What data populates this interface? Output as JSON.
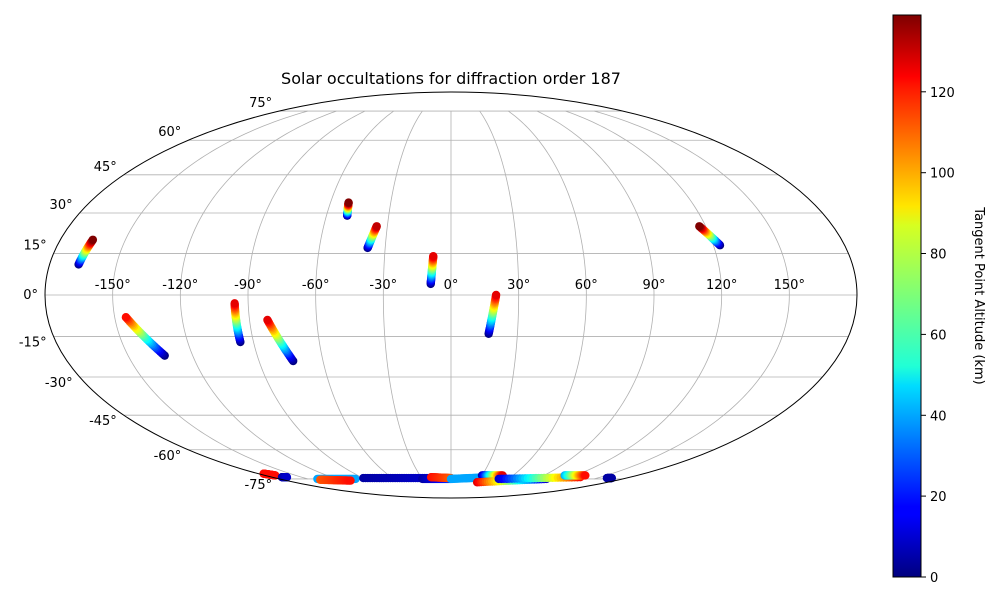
{
  "chart_data": {
    "type": "scatter",
    "projection": "mollweide",
    "title": "Solar occultations for diffraction order 187",
    "xlabel": "",
    "ylabel": "",
    "xticks": [
      "-150°",
      "-120°",
      "-90°",
      "-60°",
      "-30°",
      "0°",
      "30°",
      "60°",
      "90°",
      "120°",
      "150°"
    ],
    "yticks": [
      "-75°",
      "-60°",
      "-45°",
      "-30°",
      "-15°",
      "0°",
      "15°",
      "30°",
      "45°",
      "60°",
      "75°"
    ],
    "grid": true,
    "colormap": "jet",
    "colorbar": {
      "label": "Tangent Point Altitude (km)",
      "range": [
        0,
        139
      ],
      "ticks": [
        0,
        20,
        40,
        60,
        80,
        100,
        120
      ]
    },
    "series": [
      {
        "lon_start": -167,
        "lat_start": 11,
        "alt_start": 0,
        "lon_end": -165,
        "lat_end": 20,
        "alt_end": 139
      },
      {
        "lon_start": -50,
        "lat_start": 29,
        "alt_start": 0,
        "lon_end": -51,
        "lat_end": 34,
        "alt_end": 139
      },
      {
        "lon_start": -38,
        "lat_start": 17,
        "alt_start": 0,
        "lon_end": -35,
        "lat_end": 25,
        "alt_end": 130
      },
      {
        "lon_start": -9,
        "lat_start": 4,
        "alt_start": 0,
        "lon_end": -8,
        "lat_end": 14,
        "alt_end": 125
      },
      {
        "lon_start": 123,
        "lat_start": 18,
        "alt_start": 0,
        "lon_end": 117,
        "lat_end": 25,
        "alt_end": 139
      },
      {
        "lon_start": -133,
        "lat_start": -22,
        "alt_start": 0,
        "lon_end": -145,
        "lat_end": -8,
        "alt_end": 120
      },
      {
        "lon_start": -96,
        "lat_start": -17,
        "alt_start": 0,
        "lon_end": -96,
        "lat_end": -3,
        "alt_end": 125
      },
      {
        "lon_start": -74,
        "lat_start": -24,
        "alt_start": 0,
        "lon_end": -82,
        "lat_end": -9,
        "alt_end": 125
      },
      {
        "lon_start": 17,
        "lat_start": -14,
        "alt_start": 0,
        "lon_end": 20,
        "lat_end": 0,
        "alt_end": 125
      },
      {
        "lon_start": -140,
        "lat_start": -75,
        "alt_start": 40,
        "lon_end": -100,
        "lat_end": -75,
        "alt_end": 40
      },
      {
        "lon_start": -140,
        "lat_start": -75.5,
        "alt_start": 110,
        "lon_end": -110,
        "lat_end": -76,
        "alt_end": 120
      },
      {
        "lon_start": -90,
        "lat_start": -74.5,
        "alt_start": 5,
        "lon_end": -20,
        "lat_end": -74.5,
        "alt_end": 10
      },
      {
        "lon_start": -30,
        "lat_start": -75,
        "alt_start": 5,
        "lon_end": 0,
        "lat_end": -75,
        "alt_end": 25
      },
      {
        "lon_start": -20,
        "lat_start": -74,
        "alt_start": 120,
        "lon_end": 0,
        "lat_end": -74.5,
        "alt_end": 110
      },
      {
        "lon_start": 0,
        "lat_start": -75,
        "alt_start": 40,
        "lon_end": 40,
        "lat_end": -74,
        "alt_end": 40
      },
      {
        "lon_start": 30,
        "lat_start": -73,
        "alt_start": 5,
        "lon_end": 50,
        "lat_end": -73,
        "alt_end": 125
      },
      {
        "lon_start": 30,
        "lat_start": -77,
        "alt_start": 125,
        "lon_end": 100,
        "lat_end": -75,
        "alt_end": 10
      },
      {
        "lon_start": 50,
        "lat_start": -75,
        "alt_start": 10,
        "lon_end": 130,
        "lat_end": -74,
        "alt_end": 120
      },
      {
        "lon_start": 110,
        "lat_start": -73,
        "alt_start": 40,
        "lon_end": 130,
        "lat_end": -73,
        "alt_end": 120
      },
      {
        "lon_start": 160,
        "lat_start": -74.5,
        "alt_start": 5,
        "lon_end": 165,
        "lat_end": -74.5,
        "alt_end": 5
      },
      {
        "lon_start": -175,
        "lat_start": -72,
        "alt_start": 120,
        "lon_end": -170,
        "lat_end": -73,
        "alt_end": 120
      },
      {
        "lon_start": -170,
        "lat_start": -74,
        "alt_start": 5,
        "lon_end": -165,
        "lat_end": -74,
        "alt_end": 10
      }
    ]
  }
}
